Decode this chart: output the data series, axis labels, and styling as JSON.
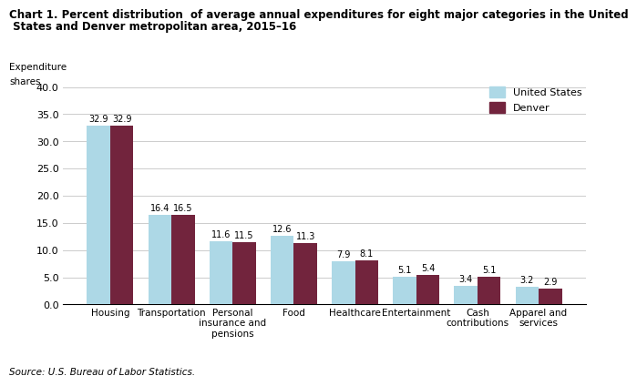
{
  "title_line1": "Chart 1. Percent distribution  of average annual expenditures for eight major categories in the United",
  "title_line2": " States and Denver metropolitan area, 2015–16",
  "ylabel_line1": "Expenditure",
  "ylabel_line2": "shares",
  "categories": [
    "Housing",
    "Transportation",
    "Personal\ninsurance and\npensions",
    "Food",
    "Healthcare",
    "Entertainment",
    "Cash\ncontributions",
    "Apparel and\nservices"
  ],
  "us_values": [
    32.9,
    16.4,
    11.6,
    12.6,
    7.9,
    5.1,
    3.4,
    3.2
  ],
  "denver_values": [
    32.9,
    16.5,
    11.5,
    11.3,
    8.1,
    5.4,
    5.1,
    2.9
  ],
  "us_color": "#ADD8E6",
  "denver_color": "#72243D",
  "us_label": "United States",
  "denver_label": "Denver",
  "ylim": [
    0,
    40.0
  ],
  "yticks": [
    0.0,
    5.0,
    10.0,
    15.0,
    20.0,
    25.0,
    30.0,
    35.0,
    40.0
  ],
  "source": "Source: U.S. Bureau of Labor Statistics.",
  "bar_width": 0.38,
  "grid_color": "#cccccc",
  "title_fontsize": 8.5,
  "axis_label_fontsize": 7.5,
  "tick_fontsize": 8,
  "value_fontsize": 7,
  "legend_fontsize": 8
}
